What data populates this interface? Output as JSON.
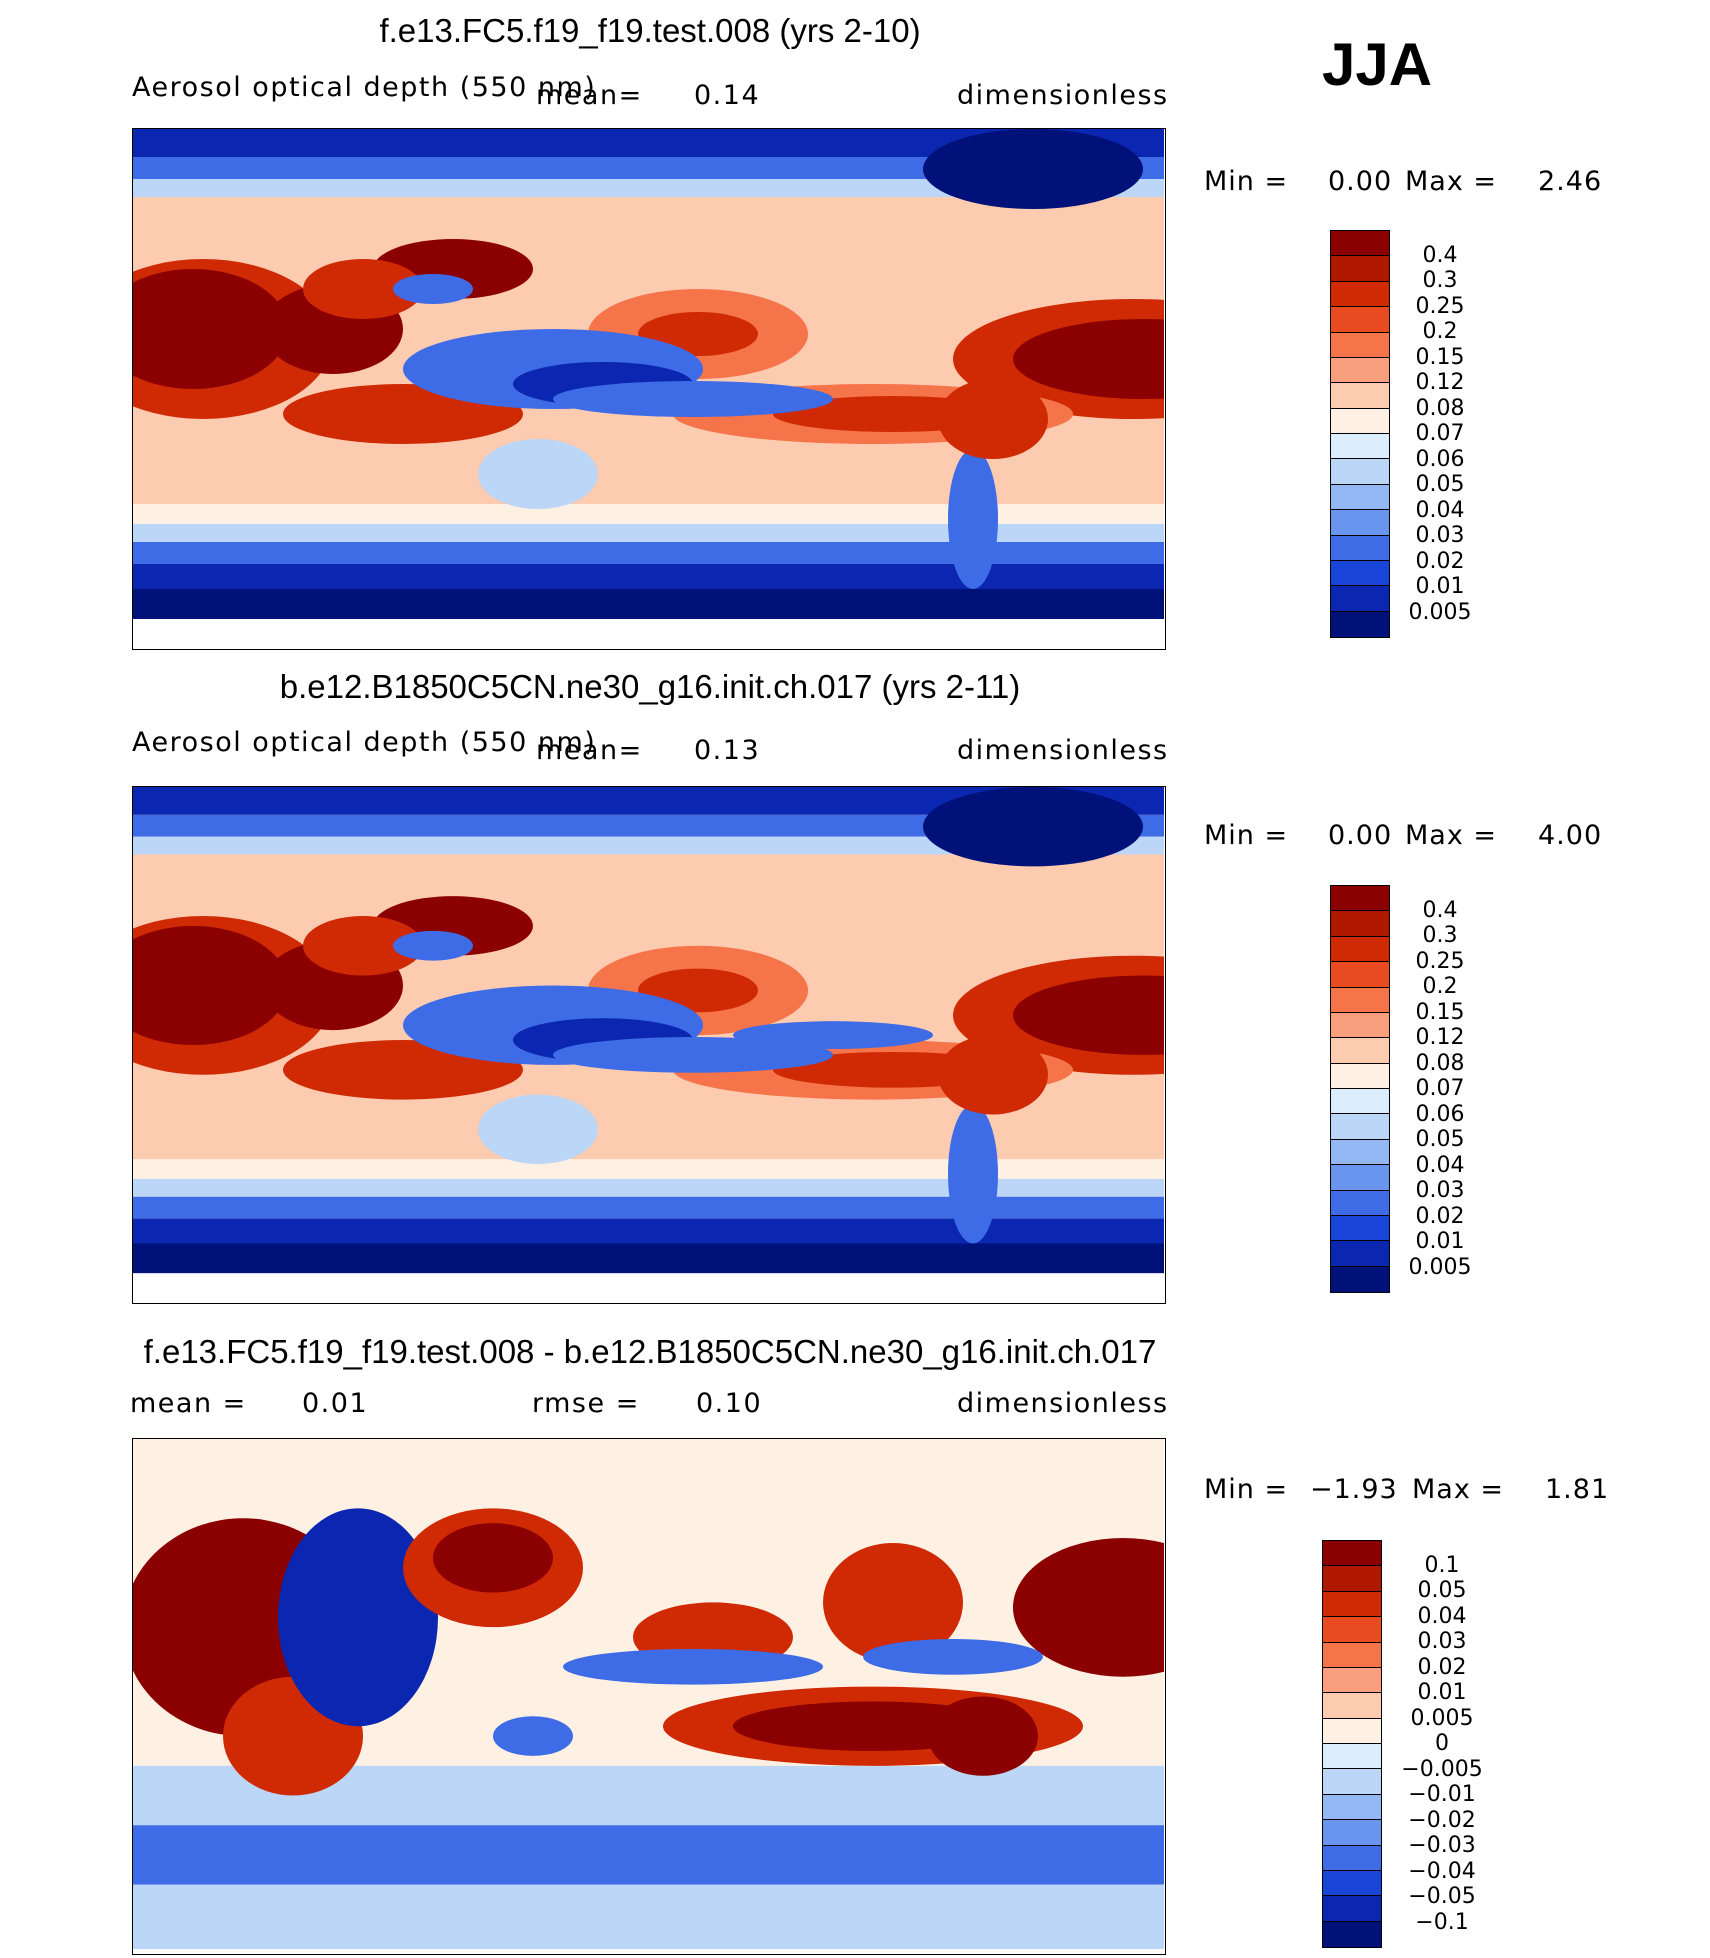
{
  "season": "JJA",
  "panels": [
    {
      "title": "f.e13.FC5.f19_f19.test.008 (yrs 2-10)",
      "variable": "Aerosol optical depth (550 nm)",
      "mean_label": "mean=",
      "mean_value": "0.14",
      "units": "dimensionless",
      "min_label": "Min =",
      "min_value": "0.00",
      "max_label": "Max =",
      "max_value": "2.46",
      "colorbar_labels": [
        "0.4",
        "0.3",
        "0.25",
        "0.2",
        "0.15",
        "0.12",
        "0.08",
        "0.07",
        "0.06",
        "0.05",
        "0.04",
        "0.03",
        "0.02",
        "0.01",
        "0.005"
      ],
      "colorbar_colors": [
        "#8b0000",
        "#b01800",
        "#d02a05",
        "#ea4a20",
        "#f5744a",
        "#f99f7e",
        "#fdcbb0",
        "#fef0e2",
        "#dceefb",
        "#bcd6f7",
        "#94b8f3",
        "#6a95ee",
        "#3e6be6",
        "#1845d8",
        "#0b26b0",
        "#00127a"
      ]
    },
    {
      "title": "b.e12.B1850C5CN.ne30_g16.init.ch.017 (yrs 2-11)",
      "variable": "Aerosol optical depth (550 nm)",
      "mean_label": "mean=",
      "mean_value": "0.13",
      "units": "dimensionless",
      "min_label": "Min =",
      "min_value": "0.00",
      "max_label": "Max =",
      "max_value": "4.00",
      "colorbar_labels": [
        "0.4",
        "0.3",
        "0.25",
        "0.2",
        "0.15",
        "0.12",
        "0.08",
        "0.07",
        "0.06",
        "0.05",
        "0.04",
        "0.03",
        "0.02",
        "0.01",
        "0.005"
      ],
      "colorbar_colors": [
        "#8b0000",
        "#b01800",
        "#d02a05",
        "#ea4a20",
        "#f5744a",
        "#f99f7e",
        "#fdcbb0",
        "#fef0e2",
        "#dceefb",
        "#bcd6f7",
        "#94b8f3",
        "#6a95ee",
        "#3e6be6",
        "#1845d8",
        "#0b26b0",
        "#00127a"
      ]
    },
    {
      "title": "f.e13.FC5.f19_f19.test.008 - b.e12.B1850C5CN.ne30_g16.init.ch.017",
      "mean_label": "mean =",
      "mean_value": "0.01",
      "rmse_label": "rmse =",
      "rmse_value": "0.10",
      "units": "dimensionless",
      "min_label": "Min =",
      "min_value": "−1.93",
      "max_label": "Max =",
      "max_value": "1.81",
      "colorbar_labels": [
        "0.1",
        "0.05",
        "0.04",
        "0.03",
        "0.02",
        "0.01",
        "0.005",
        "0",
        "−0.005",
        "−0.01",
        "−0.02",
        "−0.03",
        "−0.04",
        "−0.05",
        "−0.1"
      ],
      "colorbar_colors": [
        "#8b0000",
        "#b01800",
        "#d02a05",
        "#ea4a20",
        "#f5744a",
        "#f99f7e",
        "#fdcbb0",
        "#fef0e2",
        "#dceefb",
        "#bcd6f7",
        "#94b8f3",
        "#6a95ee",
        "#3e6be6",
        "#1845d8",
        "#0b26b0",
        "#00127a"
      ]
    }
  ],
  "map_colors": {
    "dark_red": "#8b0000",
    "red": "#d02a05",
    "orange": "#f5744a",
    "salmon": "#fdcbb0",
    "cream": "#fef0e2",
    "light_blue": "#bcd6f7",
    "blue": "#3e6be6",
    "dark_blue": "#0b26b0",
    "navy": "#00127a"
  }
}
